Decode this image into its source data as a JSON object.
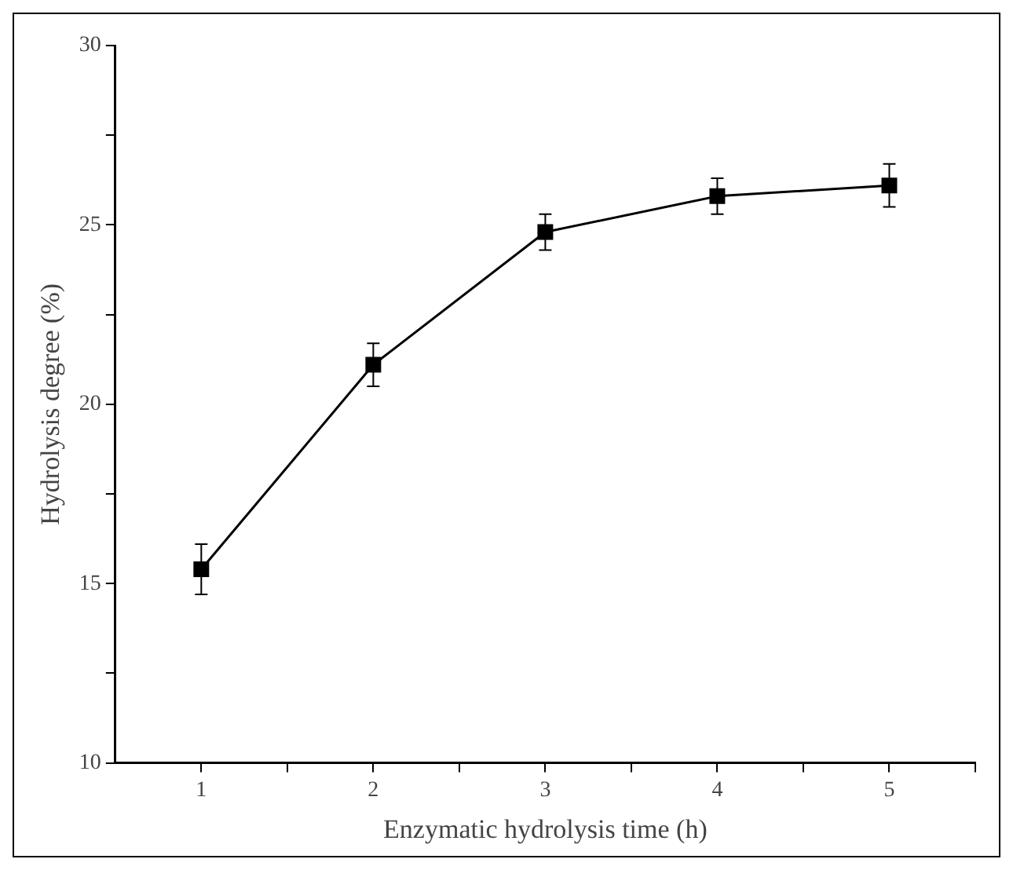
{
  "chart_data": {
    "type": "line",
    "xlabel": "Enzymatic hydrolysis time (h)",
    "ylabel": "Hydrolysis degree (%)",
    "x": [
      1,
      2,
      3,
      4,
      5
    ],
    "series": [
      {
        "color": "#000000",
        "values": [
          15.4,
          21.1,
          24.8,
          25.8,
          26.1
        ],
        "errors": [
          0.7,
          0.6,
          0.5,
          0.5,
          0.6
        ]
      }
    ],
    "xlim": [
      0.5,
      5.5
    ],
    "xticks": [
      1,
      {
        "value": 1.5,
        "label": null
      },
      2,
      {
        "value": 2.5,
        "label": null
      },
      3,
      {
        "value": 3.5,
        "label": null
      },
      4,
      {
        "value": 4.5,
        "label": null
      },
      5,
      {
        "value": 5.5,
        "label": null
      }
    ],
    "ylim": [
      10,
      30
    ],
    "yticks": [
      10,
      {
        "value": 12.5,
        "label": null
      },
      15,
      {
        "value": 17.5,
        "label": null
      },
      20,
      {
        "value": 22.5,
        "label": null
      },
      25,
      {
        "value": 27.5,
        "label": null
      },
      30
    ],
    "grid": false,
    "legend": false,
    "marker": "square",
    "line_style": "solid"
  }
}
